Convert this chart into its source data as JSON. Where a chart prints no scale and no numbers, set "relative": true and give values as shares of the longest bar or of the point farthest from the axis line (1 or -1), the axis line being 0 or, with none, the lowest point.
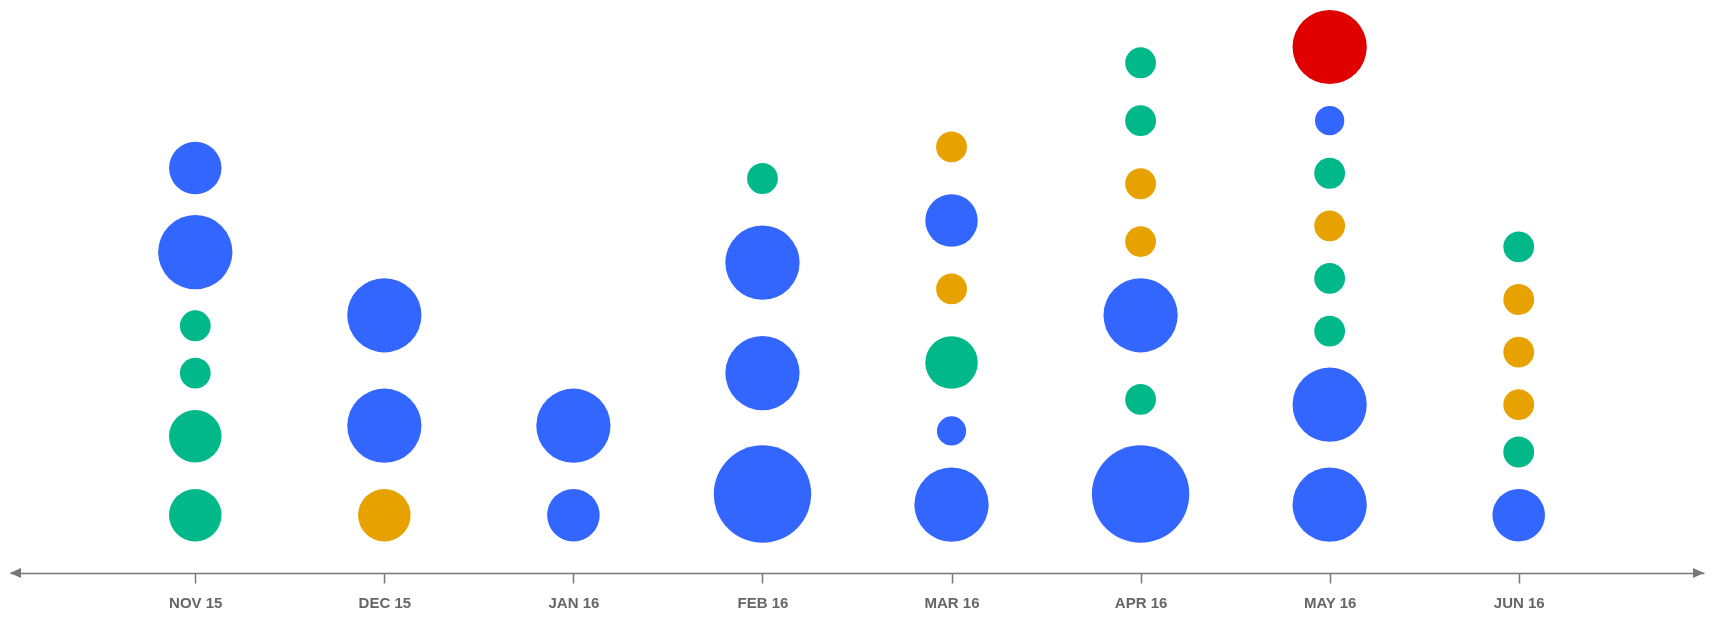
{
  "chart_data": {
    "type": "bubble",
    "relative": true,
    "categories": [
      "NOV 15",
      "DEC 15",
      "JAN 16",
      "FEB 16",
      "MAR 16",
      "APR 16",
      "MAY 16",
      "JUN 16"
    ],
    "series": [
      {
        "color": "#3366ff",
        "x": [
          "NOV 15",
          "NOV 15",
          "DEC 15",
          "DEC 15",
          "JAN 16",
          "JAN 16",
          "FEB 16",
          "FEB 16",
          "FEB 16",
          "MAR 16",
          "MAR 16",
          "MAR 16",
          "APR 16",
          "APR 16",
          "MAY 16",
          "MAY 16",
          "MAY 16",
          "JUN 16"
        ],
        "values": [
          0.77,
          0.61,
          0.49,
          0.28,
          0.28,
          0.11,
          0.59,
          0.38,
          0.15,
          0.67,
          0.27,
          0.13,
          0.49,
          0.15,
          0.86,
          0.32,
          0.13,
          0.11
        ],
        "sizes": [
          0.29,
          0.58,
          0.58,
          0.58,
          0.58,
          0.29,
          0.58,
          0.58,
          1,
          0.29,
          0.09,
          0.58,
          0.58,
          1,
          0.09,
          0.58,
          0.58,
          0.29
        ]
      },
      {
        "color": "#00b88a",
        "x": [
          "NOV 15",
          "NOV 15",
          "NOV 15",
          "NOV 15",
          "FEB 16",
          "MAR 16",
          "APR 16",
          "APR 16",
          "APR 16",
          "MAY 16",
          "MAY 16",
          "MAY 16",
          "JUN 16",
          "JUN 16"
        ],
        "values": [
          0.47,
          0.38,
          0.26,
          0.11,
          0.75,
          0.4,
          0.97,
          0.86,
          0.33,
          0.76,
          0.56,
          0.46,
          0.62,
          0.23
        ],
        "sizes": [
          0.1,
          0.1,
          0.29,
          0.29,
          0.1,
          0.29,
          0.1,
          0.1,
          0.1,
          0.1,
          0.1,
          0.1,
          0.1,
          0.1
        ]
      },
      {
        "color": "#e8a200",
        "x": [
          "DEC 15",
          "MAR 16",
          "MAR 16",
          "APR 16",
          "APR 16",
          "MAY 16",
          "JUN 16",
          "JUN 16",
          "JUN 16"
        ],
        "values": [
          0.11,
          0.81,
          0.54,
          0.74,
          0.63,
          0.66,
          0.52,
          0.42,
          0.32
        ],
        "sizes": [
          0.29,
          0.1,
          0.1,
          0.1,
          0.1,
          0.1,
          0.1,
          0.1,
          0.1
        ]
      },
      {
        "color": "#e00000",
        "x": [
          "MAY 16"
        ],
        "values": [
          1
        ],
        "sizes": [
          0.58
        ]
      }
    ]
  }
}
